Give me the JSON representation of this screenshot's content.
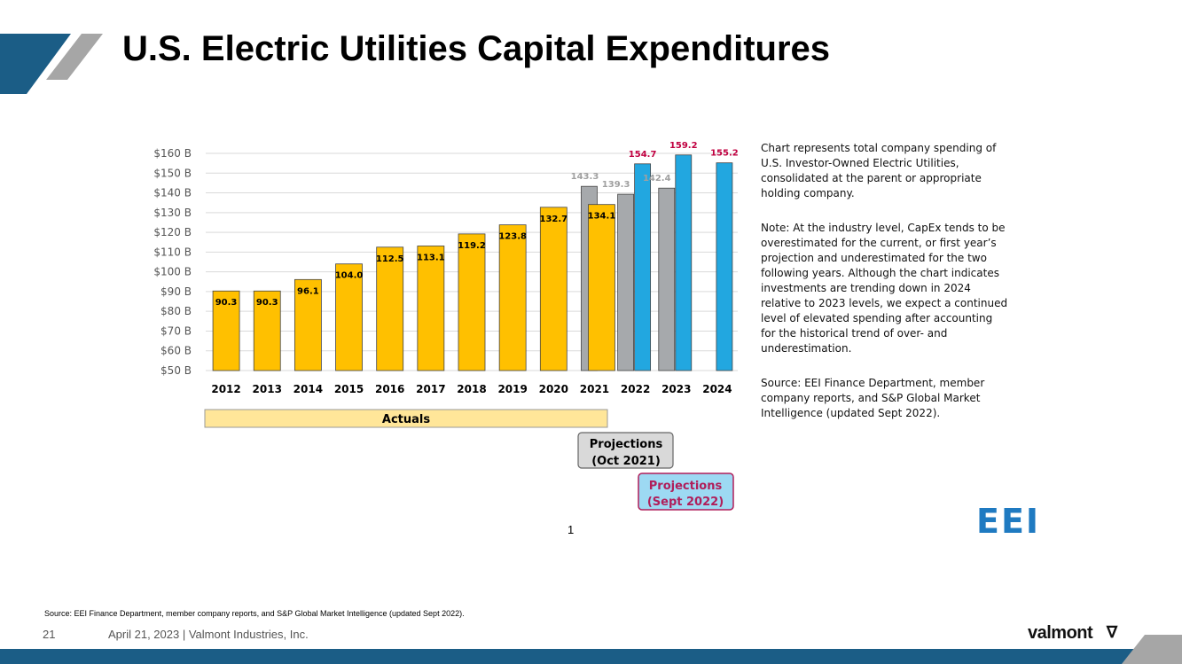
{
  "slide": {
    "title": "U.S. Electric Utilities Capital Expenditures",
    "notes": [
      "Chart represents total company spending of U.S. Investor-Owned Electric Utilities, consolidated at the parent or appropriate holding company.",
      "Note: At the industry level, CapEx tends to be overestimated for the current, or first year’s projection and underestimated for the two following years. Although the chart indicates investments are trending down in 2024 relative to 2023 levels, we expect a continued level of elevated spending after accounting for the historical trend of over- and underestimation.",
      "Source: EEI Finance Department, member company reports, and S&P Global Market Intelligence (updated Sept 2022)."
    ],
    "eei_logo": "EEI",
    "page_mark": "1",
    "footer_source": "Source: EEI Finance Department, member company reports, and S&P Global Market Intelligence (updated Sept 2022).",
    "slide_number": "21",
    "footer_text": "April 21, 2023  |  Valmont Industries, Inc.",
    "brand": "valmont",
    "brand_icon": "valmont-v-logo-icon"
  },
  "colors": {
    "actual": "#FFC000",
    "proj_2021": "#A6A9AC",
    "proj_2022": "#22A7E0",
    "proj_2022_label": "#C00040",
    "proj_2021_label": "#A0A0A0",
    "accent": "#1b5d86",
    "eei": "#1f7ac1"
  },
  "chart_data": {
    "type": "bar",
    "categories": [
      "2012",
      "2013",
      "2014",
      "2015",
      "2016",
      "2017",
      "2018",
      "2019",
      "2020",
      "2021",
      "2022",
      "2023",
      "2024"
    ],
    "series": [
      {
        "name": "Actuals",
        "values": [
          90.3,
          90.3,
          96.1,
          104.0,
          112.5,
          113.1,
          119.2,
          123.8,
          132.7,
          134.1,
          null,
          null,
          null
        ]
      },
      {
        "name": "Projections (Oct 2021)",
        "values": [
          null,
          null,
          null,
          null,
          null,
          null,
          null,
          null,
          null,
          143.3,
          139.3,
          142.4,
          null
        ]
      },
      {
        "name": "Projections (Sept 2022)",
        "values": [
          null,
          null,
          null,
          null,
          null,
          null,
          null,
          null,
          null,
          null,
          154.7,
          159.2,
          155.2
        ]
      }
    ],
    "yticks": [
      "$50 B",
      "$60 B",
      "$70 B",
      "$80 B",
      "$90 B",
      "$100 B",
      "$110 B",
      "$120 B",
      "$130 B",
      "$140 B",
      "$150 B",
      "$160 B"
    ],
    "ylim": [
      50,
      160
    ],
    "grid": true,
    "legend_boxes": [
      "Actuals",
      "Projections (Oct 2021)",
      "Projections (Sept 2022)"
    ]
  }
}
